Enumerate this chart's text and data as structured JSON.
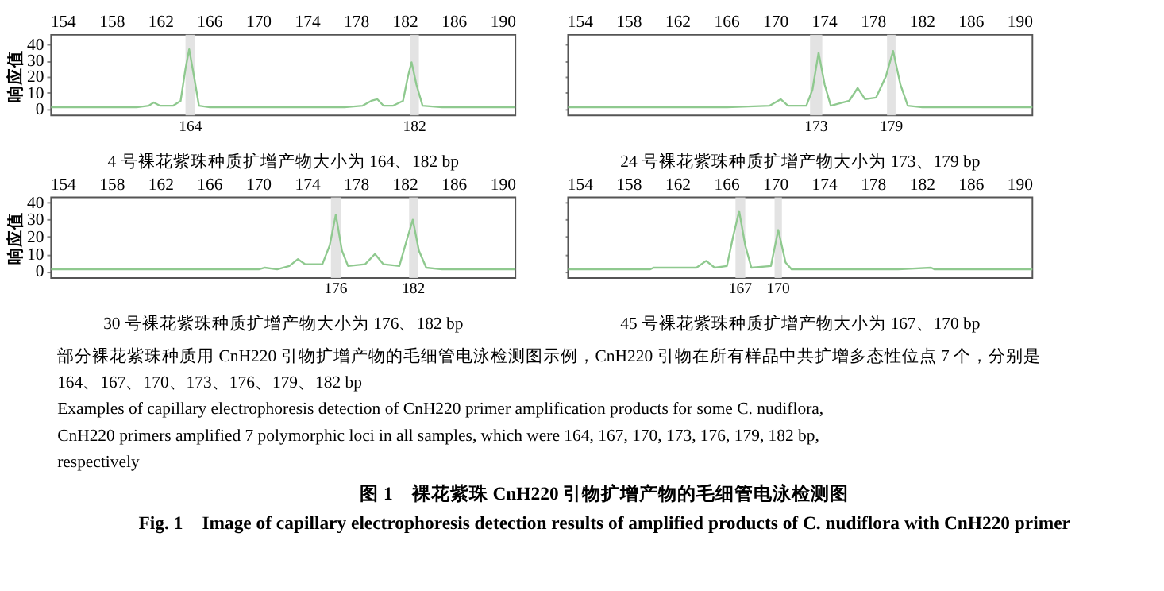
{
  "chart_data": [
    {
      "type": "line",
      "title": "4 号裸花紫珠种质扩增产物大小为 164、182 bp",
      "ylabel": "响应值",
      "xlim": [
        153,
        191
      ],
      "xticks": [
        154,
        158,
        162,
        166,
        170,
        174,
        178,
        182,
        186,
        190
      ],
      "ylim": [
        -4,
        46
      ],
      "yticks": [
        0,
        10,
        20,
        30,
        40
      ],
      "grid": false,
      "marker": "none",
      "line_style": "solid",
      "series": [
        {
          "color": "#8fc98f",
          "x": [
            153,
            156,
            158,
            160,
            161,
            161.4,
            161.9,
            163,
            163.6,
            164,
            164.3,
            164.7,
            165.1,
            166,
            170,
            174,
            177,
            178.5,
            179.2,
            179.7,
            180.2,
            181,
            181.8,
            182.2,
            182.5,
            182.9,
            183.4,
            185,
            188,
            191
          ],
          "values": [
            1,
            1,
            1,
            1,
            2,
            4,
            2,
            2,
            5,
            25,
            37,
            20,
            2,
            1,
            1,
            1,
            1,
            2,
            5,
            6,
            2,
            2,
            5,
            20,
            29,
            15,
            2,
            1,
            1,
            1
          ]
        }
      ],
      "bands": [
        {
          "axis": "x",
          "from": 164.0,
          "to": 164.8,
          "label": "164",
          "color": "#e0e0e0"
        },
        {
          "axis": "x",
          "from": 182.4,
          "to": 183.1,
          "label": "182",
          "color": "#e0e0e0"
        }
      ]
    },
    {
      "type": "line",
      "title": "24 号裸花紫珠种质扩增产物大小为 173、179 bp",
      "xlim": [
        153,
        191
      ],
      "xticks": [
        154,
        158,
        162,
        166,
        170,
        174,
        178,
        182,
        186,
        190
      ],
      "ylim": [
        -4,
        46
      ],
      "yticks": [
        0,
        10,
        20,
        30,
        40
      ],
      "tick_labels": "x",
      "grid": false,
      "marker": "none",
      "line_style": "solid",
      "series": [
        {
          "color": "#8fc98f",
          "x": [
            153,
            158,
            162,
            166,
            169.5,
            170.4,
            171,
            172.5,
            173,
            173.5,
            174,
            174.5,
            176,
            176.7,
            177.3,
            178.2,
            179,
            179.6,
            180.2,
            180.8,
            182,
            184,
            191
          ],
          "values": [
            1,
            1,
            1,
            1,
            2,
            6,
            2,
            2,
            12,
            35,
            15,
            2,
            5,
            13,
            6,
            7,
            20,
            36,
            15,
            2,
            1,
            1,
            1
          ]
        }
      ],
      "bands": [
        {
          "axis": "x",
          "from": 172.8,
          "to": 173.8,
          "label": "173",
          "color": "#e0e0e0"
        },
        {
          "axis": "x",
          "from": 179.1,
          "to": 179.8,
          "label": "179",
          "color": "#e0e0e0"
        }
      ]
    },
    {
      "type": "line",
      "title": "30 号裸花紫珠种质扩增产物大小为 176、182 bp",
      "ylabel": "响应值",
      "xlim": [
        153,
        191
      ],
      "xticks": [
        154,
        158,
        162,
        166,
        170,
        174,
        178,
        182,
        186,
        190
      ],
      "ylim": [
        -4,
        43
      ],
      "yticks": [
        0,
        10,
        20,
        30,
        40
      ],
      "grid": false,
      "marker": "none",
      "line_style": "solid",
      "series": [
        {
          "color": "#8fc98f",
          "x": [
            153,
            161,
            162,
            165,
            170,
            170.5,
            171.5,
            172.5,
            173.2,
            173.8,
            175.2,
            175.8,
            176.3,
            176.8,
            177.3,
            178.7,
            179.5,
            180.2,
            181.5,
            182.1,
            182.6,
            183.1,
            183.7,
            185,
            187,
            191
          ],
          "values": [
            1,
            1,
            1,
            1,
            1,
            2,
            1,
            3,
            7,
            4,
            4,
            15,
            33,
            12,
            3,
            4,
            10,
            4,
            3,
            18,
            30,
            12,
            2,
            1,
            1,
            1
          ]
        }
      ],
      "bands": [
        {
          "axis": "x",
          "from": 175.9,
          "to": 176.7,
          "label": "176",
          "color": "#e0e0e0"
        },
        {
          "axis": "x",
          "from": 182.3,
          "to": 183.0,
          "label": "182",
          "color": "#e0e0e0"
        }
      ]
    },
    {
      "type": "line",
      "title": "45 号裸花紫珠种质扩增产物大小为 167、170 bp",
      "xlim": [
        153,
        191
      ],
      "xticks": [
        154,
        158,
        162,
        166,
        170,
        174,
        178,
        182,
        186,
        190
      ],
      "ylim": [
        -4,
        43
      ],
      "yticks": [
        0,
        10,
        20,
        30,
        40
      ],
      "tick_labels": "x",
      "grid": false,
      "marker": "none",
      "line_style": "solid",
      "series": [
        {
          "color": "#8fc98f",
          "x": [
            153,
            159.7,
            160,
            163.5,
            164.3,
            165,
            166,
            166.5,
            167,
            167.5,
            168,
            169.6,
            170.2,
            170.8,
            171.3,
            175,
            180,
            182.7,
            183,
            191
          ],
          "values": [
            1,
            1,
            2,
            2,
            6,
            2,
            3,
            20,
            35,
            15,
            2,
            3,
            24,
            5,
            1,
            1,
            1,
            2,
            1,
            1
          ]
        }
      ],
      "bands": [
        {
          "axis": "x",
          "from": 166.7,
          "to": 167.5,
          "label": "167",
          "color": "#e0e0e0"
        },
        {
          "axis": "x",
          "from": 169.9,
          "to": 170.5,
          "label": "170",
          "color": "#e0e0e0"
        }
      ]
    },
    {
      "type": "other",
      "title": "图 1　裸花紫珠 CnH220 引物扩增产物的毛细管电泳检测图",
      "subtitle": "Fig. 1　Image of capillary electrophoresis detection results of amplified products of C. nudiflora with CnH220 primer",
      "annotations": [
        "部分裸花紫珠种质用 CnH220 引物扩增产物的毛细管电泳检测图示例，CnH220 引物在所有样品中共扩增多态性位点 7 个，分别是 164、167、170、173、176、179、182 bp",
        "Examples of capillary electrophoresis detection of CnH220 primer amplification products for some C. nudiflora, CnH220 primers amplified 7 polymorphic loci in all samples, which were 164, 167, 170, 173, 176, 179, 182 bp, respectively"
      ]
    }
  ]
}
